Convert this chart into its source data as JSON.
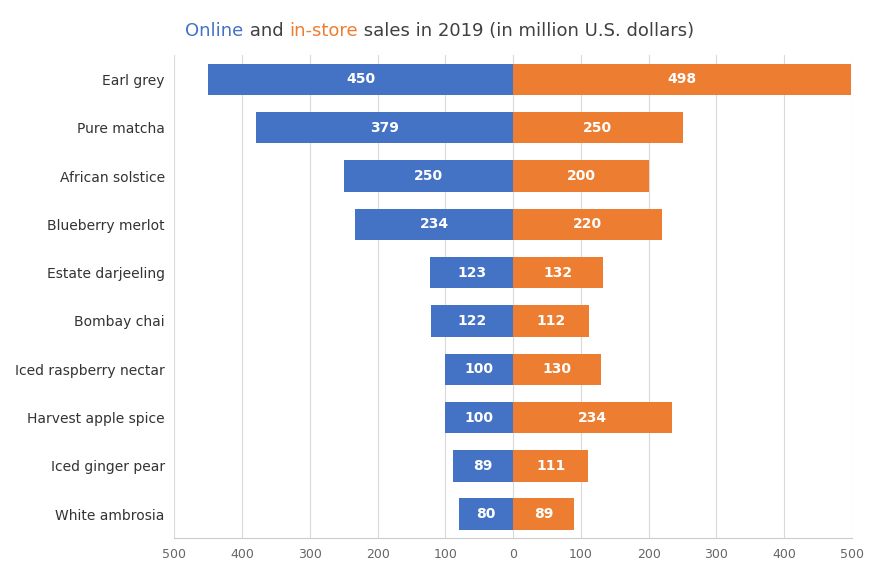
{
  "categories": [
    "Earl grey",
    "Pure matcha",
    "African solstice",
    "Blueberry merlot",
    "Estate darjeeling",
    "Bombay chai",
    "Iced raspberry nectar",
    "Harvest apple spice",
    "Iced ginger pear",
    "White ambrosia"
  ],
  "online_values": [
    450,
    379,
    250,
    234,
    123,
    122,
    100,
    100,
    89,
    80
  ],
  "instore_values": [
    498,
    250,
    200,
    220,
    132,
    112,
    130,
    234,
    111,
    89
  ],
  "online_color": "#4472C4",
  "instore_color": "#ED7D31",
  "title_online": "Online",
  "title_mid": " and ",
  "title_instore": "in-store",
  "title_suffix": " sales in 2019 (in million U.S. dollars)",
  "title_online_color": "#4472C4",
  "title_instore_color": "#ED7D31",
  "title_dark_color": "#404040",
  "xlim": 500,
  "bar_height": 0.65,
  "label_fontsize": 10,
  "category_fontsize": 10,
  "title_fontsize": 13,
  "background_color": "#FFFFFF",
  "grid_color": "#D9D9D9",
  "tick_vals": [
    -500,
    -400,
    -300,
    -200,
    -100,
    0,
    100,
    200,
    300,
    400,
    500
  ],
  "tick_labels": [
    "500",
    "400",
    "300",
    "200",
    "100",
    "0",
    "100",
    "200",
    "300",
    "400",
    "500"
  ]
}
